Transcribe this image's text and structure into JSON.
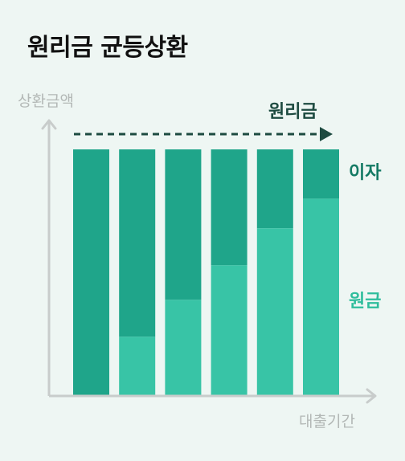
{
  "title": "원리금 균등상환",
  "chart_data": {
    "type": "bar",
    "stacked": true,
    "categories": [
      "",
      "",
      "",
      "",
      "",
      ""
    ],
    "series": [
      {
        "name": "원금",
        "values": [
          0,
          0.24,
          0.39,
          0.53,
          0.68,
          0.8
        ],
        "color": "#38c4a6"
      },
      {
        "name": "이자",
        "values": [
          1,
          0.76,
          0.61,
          0.47,
          0.32,
          0.2
        ],
        "color": "#1fa58a"
      }
    ],
    "ylabel": "상환금액",
    "xlabel": "대출기간",
    "total_label": "원리금",
    "ylim": [
      0,
      1
    ],
    "grid": false
  },
  "colors": {
    "principal": "#38c4a6",
    "interest": "#1fa58a",
    "interest_text": "#137a64",
    "principal_text": "#2fbd9c",
    "axis": "#c8cccb",
    "axis_text": "#b3b8b6",
    "arrow": "#1d4a40"
  }
}
